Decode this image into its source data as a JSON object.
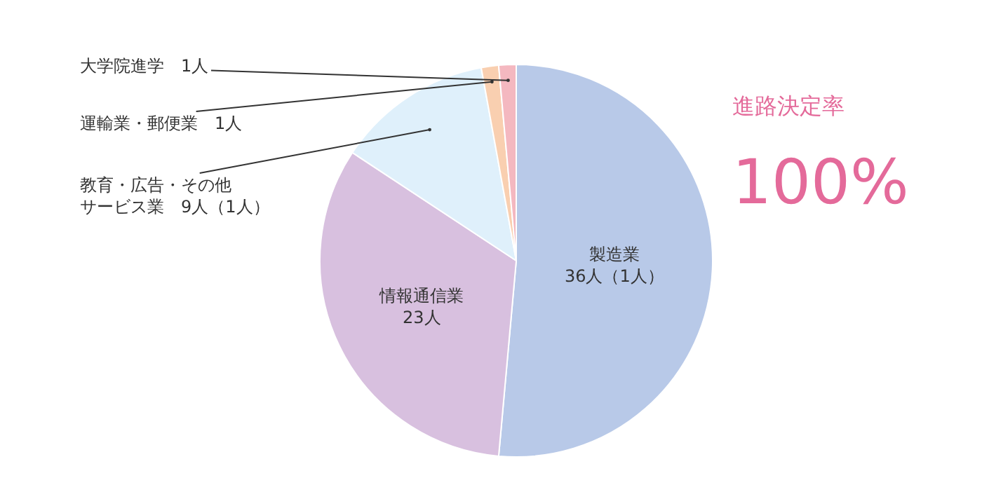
{
  "chart_data": {
    "type": "pie",
    "categories": [
      "製造業",
      "情報通信業",
      "教育・広告・その他サービス業",
      "運輸業・郵便業",
      "大学院進学"
    ],
    "values": [
      36,
      23,
      9,
      1,
      1
    ],
    "value_labels": [
      "36人（1人）",
      "23人",
      "9人（1人）",
      "1人",
      "1人"
    ],
    "colors": [
      "#b8c9e8",
      "#d8c0df",
      "#dff0fb",
      "#f9cfb0",
      "#f4b8c0"
    ],
    "annotations": [
      "進路決定率",
      "100%"
    ],
    "legend": false
  }
}
